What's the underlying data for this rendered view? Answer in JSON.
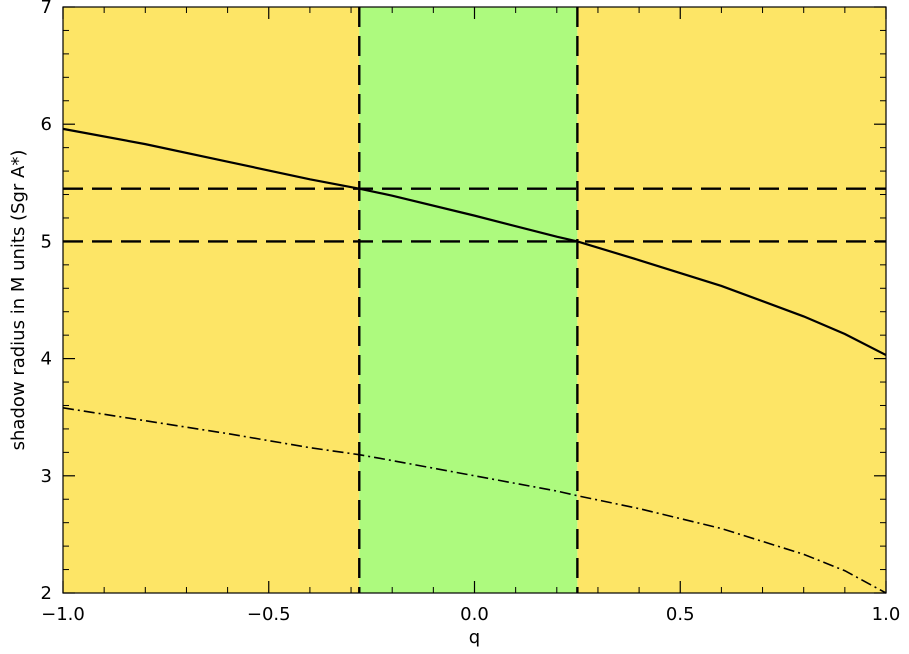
{
  "chart_data": {
    "type": "line",
    "title": "",
    "xlabel": "q",
    "ylabel": "shadow radius in M units (Sgr A*)",
    "xlim": [
      -1.0,
      1.0
    ],
    "ylim": [
      2,
      7
    ],
    "x_ticks": [
      -1.0,
      -0.5,
      0.0,
      0.5,
      1.0
    ],
    "x_tick_labels": [
      "−1.0",
      "−0.5",
      "0.0",
      "0.5",
      "1.0"
    ],
    "y_ticks": [
      2,
      3,
      4,
      5,
      6,
      7
    ],
    "y_tick_labels": [
      "2",
      "3",
      "4",
      "5",
      "6",
      "7"
    ],
    "grid": false,
    "legend": "none",
    "regions": [
      {
        "x_range": [
          -1.0,
          -0.28
        ],
        "color": "#fde566"
      },
      {
        "x_range": [
          -0.28,
          0.25
        ],
        "color": "#adfa7e"
      },
      {
        "x_range": [
          0.25,
          1.0
        ],
        "color": "#fde566"
      }
    ],
    "hlines": [
      {
        "y": 5.45,
        "style": "dashed"
      },
      {
        "y": 5.0,
        "style": "dashed"
      }
    ],
    "vlines": [
      {
        "x": -0.28,
        "style": "dashed"
      },
      {
        "x": 0.25,
        "style": "dashed"
      }
    ],
    "series": [
      {
        "style": "solid",
        "x": [
          -1.0,
          -0.8,
          -0.6,
          -0.4,
          -0.28,
          -0.2,
          0.0,
          0.2,
          0.25,
          0.4,
          0.6,
          0.8,
          0.9,
          1.0
        ],
        "y": [
          5.96,
          5.83,
          5.68,
          5.53,
          5.45,
          5.39,
          5.22,
          5.04,
          5.0,
          4.84,
          4.62,
          4.36,
          4.21,
          4.03
        ]
      },
      {
        "style": "dashdot",
        "x": [
          -1.0,
          -0.8,
          -0.6,
          -0.4,
          -0.28,
          -0.2,
          0.0,
          0.2,
          0.25,
          0.4,
          0.6,
          0.8,
          0.9,
          1.0
        ],
        "y": [
          3.58,
          3.47,
          3.36,
          3.24,
          3.18,
          3.13,
          3.0,
          2.87,
          2.83,
          2.72,
          2.55,
          2.33,
          2.19,
          2.0
        ]
      }
    ],
    "colors": {
      "yellow_region": "#fde566",
      "green_region": "#adfa7e",
      "lines": "#000000"
    }
  }
}
